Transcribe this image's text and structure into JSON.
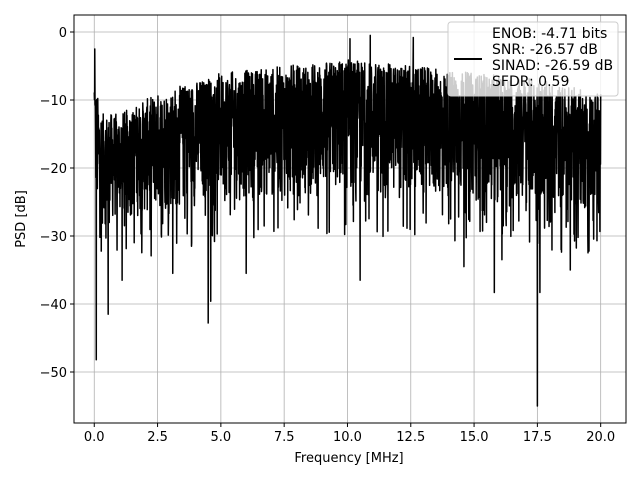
{
  "chart_data": {
    "type": "line",
    "xlabel": "Frequency [MHz]",
    "ylabel": "PSD [dB]",
    "xlim": [
      -0.8,
      21.0
    ],
    "ylim": [
      -57.5,
      2.5
    ],
    "xticks": [
      0.0,
      2.5,
      5.0,
      7.5,
      10.0,
      12.5,
      15.0,
      17.5,
      20.0
    ],
    "xtick_labels": [
      "0.0",
      "2.5",
      "5.0",
      "7.5",
      "10.0",
      "12.5",
      "15.0",
      "17.5",
      "20.0"
    ],
    "yticks": [
      0,
      -10,
      -20,
      -30,
      -40,
      -50
    ],
    "ytick_labels": [
      "0",
      "−10",
      "−20",
      "−30",
      "−40",
      "−50"
    ],
    "grid": true,
    "legend_position": "top-right",
    "series": [
      {
        "name": "ENOB: -4.71 bits\nSNR: -26.57 dB\nSINAD: -26.59 dB\nSFDR: 0.59",
        "color": "#000000",
        "x_range": [
          0.0,
          20.0
        ],
        "envelope_x": [
          0.0,
          0.05,
          0.3,
          1.0,
          2.5,
          5.0,
          7.5,
          10.0,
          12.5,
          15.0,
          17.5,
          20.0
        ],
        "envelope_upper": [
          -3,
          -8,
          -12,
          -12,
          -9,
          -6,
          -5,
          -4,
          -5,
          -6,
          -7,
          -9
        ],
        "envelope_lower": [
          -26,
          -28,
          -29,
          -28,
          -27,
          -25,
          -25,
          -24,
          -25,
          -25,
          -26,
          -27
        ],
        "peaks": [
          {
            "x": 0.02,
            "y": -2.5
          },
          {
            "x": 10.1,
            "y": -1.0
          },
          {
            "x": 10.9,
            "y": -0.5
          },
          {
            "x": 12.6,
            "y": -0.8
          }
        ],
        "dips": [
          {
            "x": 0.08,
            "y": -48.2
          },
          {
            "x": 0.55,
            "y": -41.5
          },
          {
            "x": 1.1,
            "y": -36.5
          },
          {
            "x": 3.1,
            "y": -35.5
          },
          {
            "x": 4.5,
            "y": -42.8
          },
          {
            "x": 4.6,
            "y": -39.6
          },
          {
            "x": 6.0,
            "y": -35.5
          },
          {
            "x": 10.5,
            "y": -36.5
          },
          {
            "x": 14.6,
            "y": -34.5
          },
          {
            "x": 15.8,
            "y": -38.3
          },
          {
            "x": 16.1,
            "y": -33.5
          },
          {
            "x": 17.5,
            "y": -55.0
          },
          {
            "x": 17.6,
            "y": -38.3
          },
          {
            "x": 18.8,
            "y": -35.0
          }
        ]
      }
    ]
  }
}
